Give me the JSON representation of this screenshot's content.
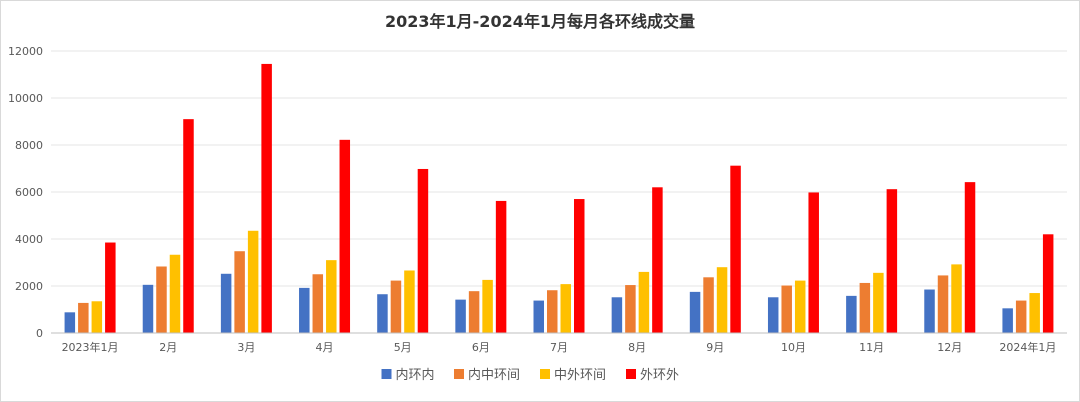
{
  "chart_data": {
    "type": "bar",
    "title": "2023年1月-2024年1月每月各环线成交量",
    "categories": [
      "2023年1月",
      "2月",
      "3月",
      "4月",
      "5月",
      "6月",
      "7月",
      "8月",
      "9月",
      "10月",
      "11月",
      "12月",
      "2024年1月"
    ],
    "ylim": [
      0,
      12000
    ],
    "yticks": [
      0,
      2000,
      4000,
      6000,
      8000,
      10000,
      12000
    ],
    "grid": true,
    "legend_position": "bottom",
    "series": [
      {
        "name": "内环内",
        "color": "#4472c4",
        "values": [
          880,
          2050,
          2520,
          1920,
          1650,
          1420,
          1380,
          1520,
          1750,
          1520,
          1580,
          1850,
          1050
        ]
      },
      {
        "name": "内中环间",
        "color": "#ed7d31",
        "values": [
          1280,
          2830,
          3480,
          2500,
          2230,
          1780,
          1820,
          2040,
          2370,
          2020,
          2130,
          2450,
          1380
        ]
      },
      {
        "name": "中外环间",
        "color": "#ffc000",
        "values": [
          1350,
          3330,
          4350,
          3100,
          2660,
          2260,
          2080,
          2600,
          2800,
          2230,
          2560,
          2920,
          1700
        ]
      },
      {
        "name": "外环外",
        "color": "#ff0000",
        "values": [
          3850,
          9100,
          11450,
          8220,
          6980,
          5620,
          5700,
          6200,
          7120,
          5980,
          6120,
          6420,
          4200
        ]
      }
    ]
  }
}
